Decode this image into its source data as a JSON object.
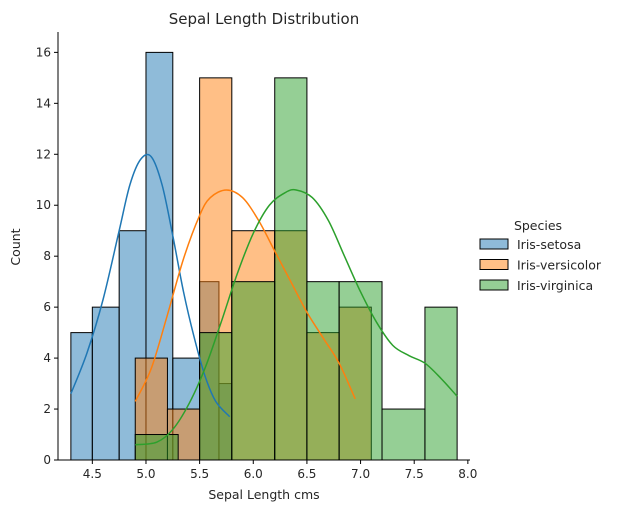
{
  "chart_data": {
    "type": "histogram",
    "title": "Sepal Length Distribution",
    "xlabel": "Sepal Length cms",
    "ylabel": "Count",
    "xlim": [
      4.18,
      8.02
    ],
    "ylim": [
      0,
      16.8
    ],
    "x_ticks": [
      4.5,
      5.0,
      5.5,
      6.0,
      6.5,
      7.0,
      7.5,
      8.0
    ],
    "x_tick_labels": [
      "4.5",
      "5.0",
      "5.5",
      "6.0",
      "6.5",
      "7.0",
      "7.5",
      "8.0"
    ],
    "y_ticks": [
      0,
      2,
      4,
      6,
      8,
      10,
      12,
      14,
      16
    ],
    "y_tick_labels": [
      "0",
      "2",
      "4",
      "6",
      "8",
      "10",
      "12",
      "14",
      "16"
    ],
    "grid": false,
    "legend": {
      "title": "Species",
      "position": "right"
    },
    "series": [
      {
        "name": "Iris-setosa",
        "color": "#1f77b4",
        "bins": [
          {
            "x0": 4.3,
            "x1": 4.5,
            "count": 5
          },
          {
            "x0": 4.5,
            "x1": 4.75,
            "count": 6
          },
          {
            "x0": 4.75,
            "x1": 5.0,
            "count": 9
          },
          {
            "x0": 5.0,
            "x1": 5.25,
            "count": 16
          },
          {
            "x0": 5.25,
            "x1": 5.5,
            "count": 4
          },
          {
            "x0": 5.5,
            "x1": 5.68,
            "count": 7
          },
          {
            "x0": 5.68,
            "x1": 5.8,
            "count": 3
          }
        ],
        "kde": [
          [
            4.3,
            2.6
          ],
          [
            4.45,
            4.2
          ],
          [
            4.6,
            6.3
          ],
          [
            4.75,
            9.0
          ],
          [
            4.85,
            10.8
          ],
          [
            4.95,
            11.8
          ],
          [
            5.05,
            11.9
          ],
          [
            5.15,
            10.8
          ],
          [
            5.25,
            8.8
          ],
          [
            5.35,
            6.6
          ],
          [
            5.45,
            4.8
          ],
          [
            5.55,
            3.3
          ],
          [
            5.65,
            2.3
          ],
          [
            5.78,
            1.7
          ]
        ]
      },
      {
        "name": "Iris-versicolor",
        "color": "#ff7f0e",
        "bins": [
          {
            "x0": 4.9,
            "x1": 5.2,
            "count": 4
          },
          {
            "x0": 5.2,
            "x1": 5.5,
            "count": 2
          },
          {
            "x0": 5.5,
            "x1": 5.8,
            "count": 15
          },
          {
            "x0": 5.8,
            "x1": 6.2,
            "count": 9
          },
          {
            "x0": 6.2,
            "x1": 6.5,
            "count": 9
          },
          {
            "x0": 6.5,
            "x1": 6.8,
            "count": 5
          },
          {
            "x0": 6.8,
            "x1": 7.1,
            "count": 6
          }
        ],
        "kde": [
          [
            4.9,
            2.3
          ],
          [
            5.05,
            3.6
          ],
          [
            5.2,
            5.7
          ],
          [
            5.35,
            7.9
          ],
          [
            5.5,
            9.6
          ],
          [
            5.6,
            10.3
          ],
          [
            5.75,
            10.6
          ],
          [
            5.9,
            10.3
          ],
          [
            6.05,
            9.4
          ],
          [
            6.2,
            8.2
          ],
          [
            6.35,
            7.0
          ],
          [
            6.5,
            5.8
          ],
          [
            6.65,
            4.8
          ],
          [
            6.8,
            3.8
          ],
          [
            6.95,
            2.4
          ]
        ]
      },
      {
        "name": "Iris-virginica",
        "color": "#2ca02c",
        "bins": [
          {
            "x0": 4.9,
            "x1": 5.3,
            "count": 1
          },
          {
            "x0": 5.5,
            "x1": 5.8,
            "count": 5
          },
          {
            "x0": 5.8,
            "x1": 6.2,
            "count": 7
          },
          {
            "x0": 6.2,
            "x1": 6.5,
            "count": 15
          },
          {
            "x0": 6.5,
            "x1": 6.8,
            "count": 7
          },
          {
            "x0": 6.8,
            "x1": 7.2,
            "count": 7
          },
          {
            "x0": 7.2,
            "x1": 7.6,
            "count": 2
          },
          {
            "x0": 7.6,
            "x1": 7.9,
            "count": 6
          }
        ],
        "kde": [
          [
            4.9,
            0.6
          ],
          [
            5.1,
            0.7
          ],
          [
            5.25,
            1.2
          ],
          [
            5.4,
            2.2
          ],
          [
            5.55,
            3.6
          ],
          [
            5.7,
            5.4
          ],
          [
            5.85,
            7.3
          ],
          [
            6.0,
            8.9
          ],
          [
            6.15,
            10.0
          ],
          [
            6.3,
            10.5
          ],
          [
            6.4,
            10.6
          ],
          [
            6.55,
            10.3
          ],
          [
            6.7,
            9.4
          ],
          [
            6.85,
            8.0
          ],
          [
            7.0,
            6.6
          ],
          [
            7.15,
            5.4
          ],
          [
            7.3,
            4.5
          ],
          [
            7.45,
            4.1
          ],
          [
            7.6,
            3.8
          ],
          [
            7.75,
            3.2
          ],
          [
            7.9,
            2.5
          ]
        ]
      }
    ]
  }
}
